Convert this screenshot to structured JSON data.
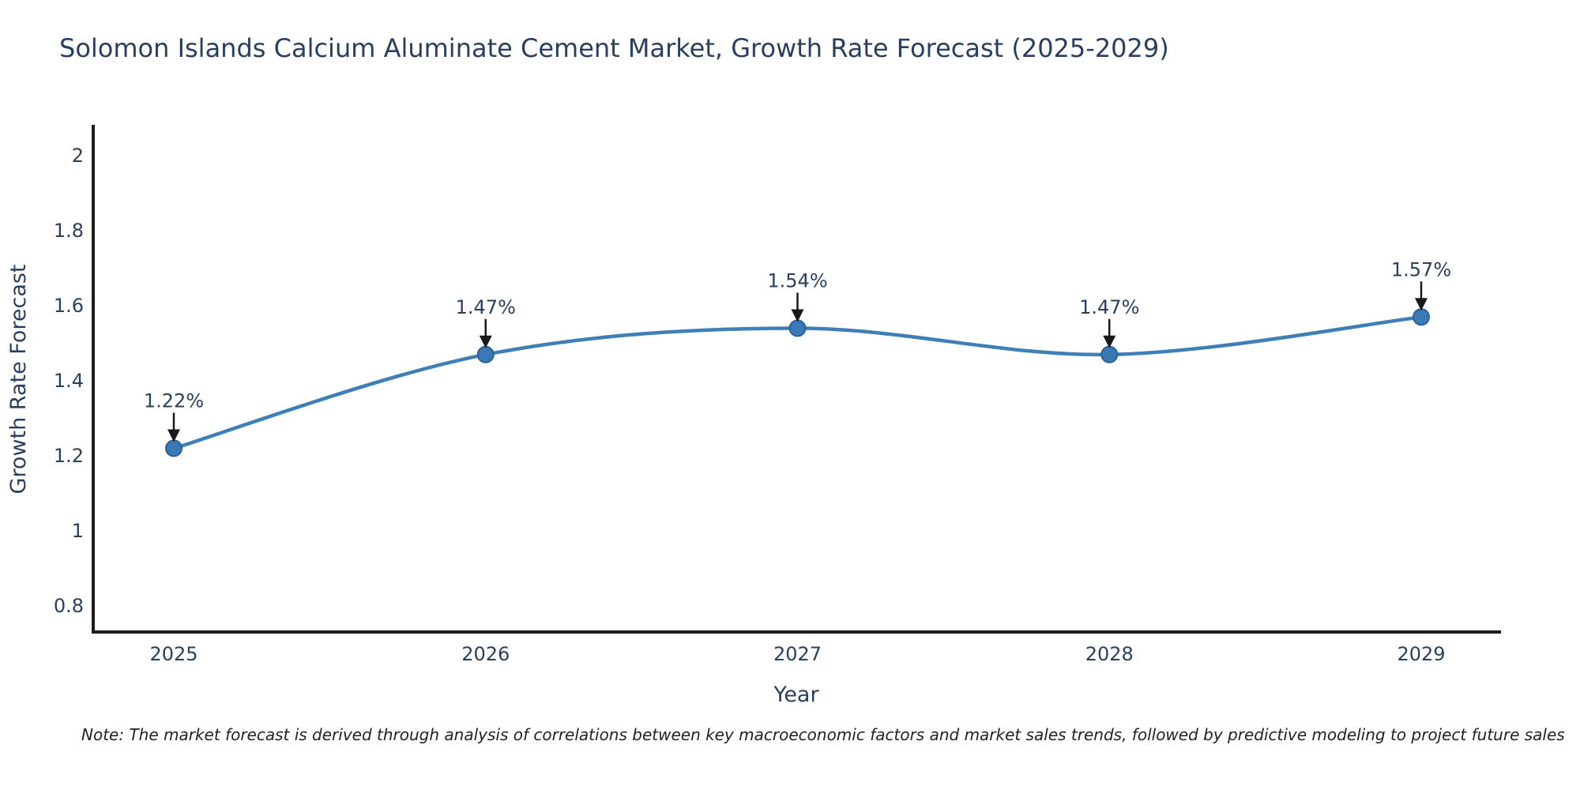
{
  "note": "Note: The market forecast is derived through analysis of correlations between key macroeconomic factors and market sales trends, followed by predictive modeling to project future sales",
  "chart_data": {
    "type": "line",
    "title": "Solomon Islands Calcium Aluminate Cement Market, Growth Rate Forecast (2025-2029)",
    "xlabel": "Year",
    "ylabel": "Growth Rate Forecast",
    "categories": [
      "2025",
      "2026",
      "2027",
      "2028",
      "2029"
    ],
    "values": [
      1.22,
      1.47,
      1.54,
      1.47,
      1.57
    ],
    "point_labels": [
      "1.22%",
      "1.47%",
      "1.54%",
      "1.47%",
      "1.57%"
    ],
    "yticks": [
      {
        "value": 2,
        "label": "2"
      },
      {
        "value": 1.8,
        "label": "1.8"
      },
      {
        "value": 1.6,
        "label": "1.6"
      },
      {
        "value": 1.4,
        "label": "1.4"
      },
      {
        "value": 1.2,
        "label": "1.2"
      },
      {
        "value": 1,
        "label": "1"
      },
      {
        "value": 0.8,
        "label": "0.8"
      }
    ],
    "ylim": [
      0.73,
      2.08
    ],
    "line_shape": "spline",
    "grid": false,
    "legend_position": "none",
    "colors": {
      "line": "#3f7fb8",
      "marker_fill": "#3a79b6",
      "marker_edge": "#2d6294",
      "arrow": "#16181c",
      "text": "#2a3f5f",
      "axis": "#1c1c1e"
    }
  }
}
